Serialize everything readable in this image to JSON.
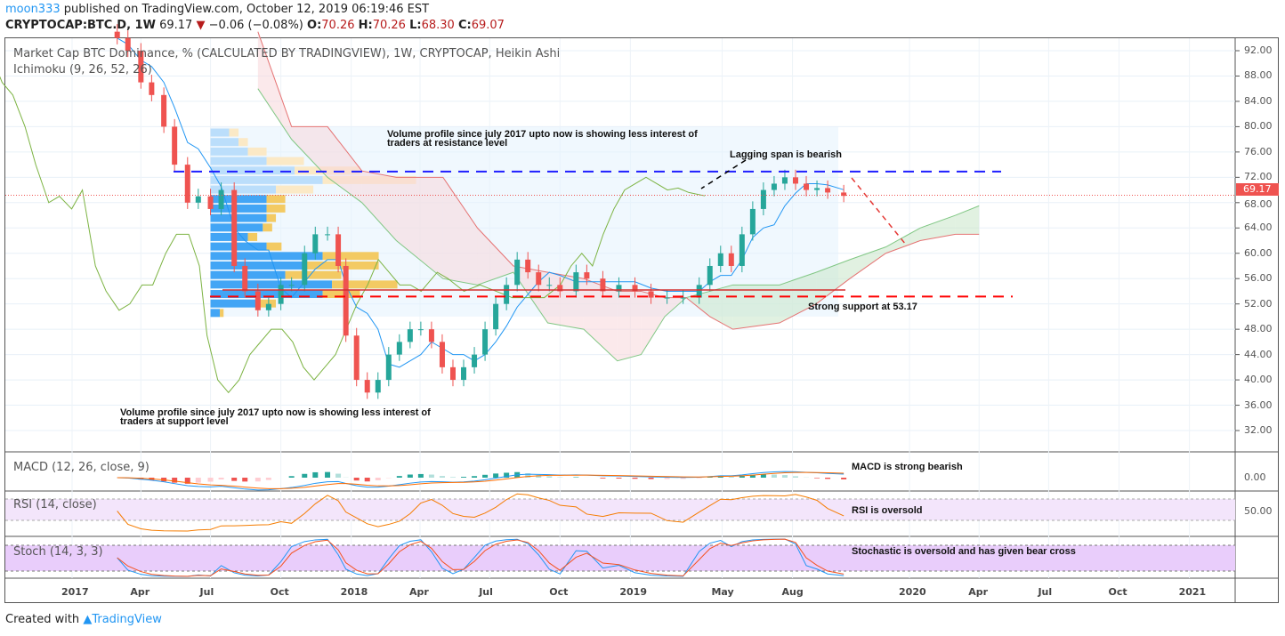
{
  "header": {
    "user": "moon333",
    "published": "published on TradingView.com, October 12, 2019 06:19:46 EST",
    "symbol": "CRYPTOCAP:BTC.D, 1W",
    "last": "69.17",
    "change": "−0.06 (−0.08%)",
    "o_label": "O:",
    "o": "70.26",
    "h_label": "H:",
    "h": "70.26",
    "l_label": "L:",
    "l": "68.30",
    "c_label": "C:",
    "c": "69.07"
  },
  "panes": {
    "main_title": "Market Cap BTC Dominance, % (CALCULATED BY TRADINGVIEW), 1W, CRYPTOCAP, Heikin Ashi",
    "ichimoku": "Ichimoku (9, 26, 52, 26)",
    "macd": "MACD (12, 26, close, 9)",
    "rsi": "RSI (14, close)",
    "stoch": "Stoch (14, 3, 3)"
  },
  "annotations": {
    "vp_resistance_1": "Volume profile since july 2017 upto now is showing less interest of",
    "vp_resistance_2": "traders at resistance level",
    "lagging": "Lagging span is bearish",
    "support": "Strong support at 53.17",
    "vp_support_1": "Volume profile since july 2017 upto now is showing less interest of",
    "vp_support_2": "traders at support level",
    "macd": "MACD is strong bearish",
    "rsi": "RSI is oversold",
    "stoch": "Stochastic is oversold and has given bear cross"
  },
  "price_axis": {
    "ticks": [
      "92.00",
      "88.00",
      "84.00",
      "80.00",
      "76.00",
      "72.00",
      "68.00",
      "64.00",
      "60.00",
      "56.00",
      "52.00",
      "48.00",
      "44.00",
      "40.00",
      "36.00",
      "32.00"
    ],
    "current": "69.17",
    "macd_tick": "0.00",
    "rsi_tick": "50.00"
  },
  "time_axis": {
    "ticks": [
      [
        "2017",
        "2017-01-01"
      ],
      [
        "Apr",
        "2017-04-01"
      ],
      [
        "Jul",
        "2017-07-01"
      ],
      [
        "Oct",
        "2017-10-01"
      ],
      [
        "2018",
        "2018-01-01"
      ],
      [
        "Apr",
        "2018-04-01"
      ],
      [
        "Jul",
        "2018-07-01"
      ],
      [
        "Oct",
        "2018-10-01"
      ],
      [
        "2019",
        "2019-01-01"
      ],
      [
        "May",
        "2019-05-01"
      ],
      [
        "Aug",
        "2019-08-01"
      ],
      [
        "2020",
        "2020-01-01"
      ],
      [
        "Apr",
        "2020-04-01"
      ],
      [
        "Jul",
        "2020-07-01"
      ],
      [
        "Oct",
        "2020-10-01"
      ],
      [
        "2021",
        "2021-01-01"
      ]
    ]
  },
  "footer": {
    "created": "Created with",
    "brand": "TradingView"
  },
  "colors": {
    "up": "#26a69a",
    "down": "#ef5350",
    "resistance": "#1e1eff",
    "support": "#ff0000",
    "lagging": "#7cb342",
    "base": "#2196f3",
    "rsi": "#f57c00",
    "stoch_k": "#2196f3",
    "stoch_d": "#f4511e"
  },
  "chart_data": {
    "type": "candlestick",
    "ylim": [
      28,
      95
    ],
    "levels": {
      "resistance": 72.9,
      "support": 53.17,
      "support_zone": 54.2
    },
    "candles": [
      [
        "2017-03-01",
        94
      ],
      [
        "2017-03-15",
        92
      ],
      [
        "2017-04-01",
        87
      ],
      [
        "2017-04-15",
        85
      ],
      [
        "2017-05-01",
        80
      ],
      [
        "2017-05-15",
        74
      ],
      [
        "2017-06-01",
        68
      ],
      [
        "2017-06-15",
        69
      ],
      [
        "2017-07-01",
        67
      ],
      [
        "2017-07-15",
        70
      ],
      [
        "2017-08-01",
        58
      ],
      [
        "2017-08-15",
        54
      ],
      [
        "2017-09-01",
        51
      ],
      [
        "2017-09-15",
        52
      ],
      [
        "2017-10-01",
        55
      ],
      [
        "2017-10-15",
        55
      ],
      [
        "2017-11-01",
        60
      ],
      [
        "2017-11-15",
        63
      ],
      [
        "2017-12-01",
        63
      ],
      [
        "2017-12-15",
        58
      ],
      [
        "2017-12-25",
        47
      ],
      [
        "2018-01-08",
        40
      ],
      [
        "2018-01-22",
        38
      ],
      [
        "2018-02-05",
        40
      ],
      [
        "2018-02-19",
        44
      ],
      [
        "2018-03-05",
        46
      ],
      [
        "2018-03-19",
        48
      ],
      [
        "2018-04-02",
        48
      ],
      [
        "2018-04-16",
        46
      ],
      [
        "2018-04-30",
        42
      ],
      [
        "2018-05-14",
        40
      ],
      [
        "2018-05-28",
        42
      ],
      [
        "2018-06-11",
        44
      ],
      [
        "2018-06-25",
        48
      ],
      [
        "2018-07-09",
        52
      ],
      [
        "2018-07-23",
        55
      ],
      [
        "2018-08-06",
        59
      ],
      [
        "2018-08-20",
        57
      ],
      [
        "2018-09-03",
        55
      ],
      [
        "2018-09-17",
        55
      ],
      [
        "2018-10-01",
        54
      ],
      [
        "2018-10-22",
        57
      ],
      [
        "2018-11-05",
        56
      ],
      [
        "2018-11-26",
        54
      ],
      [
        "2018-12-17",
        55
      ],
      [
        "2019-01-07",
        54
      ],
      [
        "2019-01-28",
        53
      ],
      [
        "2019-02-18",
        53
      ],
      [
        "2019-03-11",
        53
      ],
      [
        "2019-04-01",
        55
      ],
      [
        "2019-04-15",
        58
      ],
      [
        "2019-04-29",
        60
      ],
      [
        "2019-05-13",
        58
      ],
      [
        "2019-05-27",
        63
      ],
      [
        "2019-06-10",
        67
      ],
      [
        "2019-06-24",
        70
      ],
      [
        "2019-07-08",
        71
      ],
      [
        "2019-07-22",
        72
      ],
      [
        "2019-08-05",
        71
      ],
      [
        "2019-08-19",
        70
      ],
      [
        "2019-09-02",
        70.3
      ],
      [
        "2019-09-16",
        69.6
      ],
      [
        "2019-10-07",
        69.07
      ]
    ],
    "ichimoku_cloud": [
      [
        "2017-09-01",
        86,
        95
      ],
      [
        "2017-10-15",
        78,
        80
      ],
      [
        "2017-12-01",
        72,
        80
      ],
      [
        "2018-01-15",
        68,
        73
      ],
      [
        "2018-03-01",
        62,
        72
      ],
      [
        "2018-05-01",
        56,
        72
      ],
      [
        "2018-06-15",
        55,
        64
      ],
      [
        "2018-08-01",
        57,
        58
      ],
      [
        "2018-09-15",
        49,
        57
      ],
      [
        "2018-11-01",
        48,
        56
      ],
      [
        "2018-12-15",
        43,
        54
      ],
      [
        "2019-01-15",
        44,
        54
      ],
      [
        "2019-02-15",
        50,
        53
      ],
      [
        "2019-03-15",
        53,
        53
      ],
      [
        "2019-04-15",
        54,
        50
      ],
      [
        "2019-05-15",
        55,
        48
      ],
      [
        "2019-07-15",
        55,
        49
      ],
      [
        "2019-09-01",
        57,
        52
      ],
      [
        "2019-10-15",
        59,
        56
      ],
      [
        "2019-12-01",
        61,
        60
      ],
      [
        "2020-01-15",
        64,
        62
      ],
      [
        "2020-03-01",
        66,
        63
      ],
      [
        "2020-04-01",
        67.5,
        63
      ]
    ],
    "volume_profile": {
      "range": [
        "2017-07-01",
        "2019-09-30"
      ],
      "rows": [
        [
          79,
          0.1,
          0.05
        ],
        [
          77.5,
          0.15,
          0.05
        ],
        [
          76,
          0.2,
          0.1
        ],
        [
          74.5,
          0.3,
          0.2
        ],
        [
          73,
          0.45,
          0.35
        ],
        [
          71.5,
          0.6,
          0.5
        ],
        [
          70,
          0.35,
          0.2
        ],
        [
          68.5,
          0.3,
          0.1
        ],
        [
          67,
          0.3,
          0.1
        ],
        [
          65.5,
          0.3,
          0.05
        ],
        [
          64,
          0.28,
          0.05
        ],
        [
          62.5,
          0.2,
          0.05
        ],
        [
          61,
          0.3,
          0.08
        ],
        [
          59.5,
          0.6,
          0.3
        ],
        [
          58,
          0.5,
          0.4
        ],
        [
          56.5,
          0.4,
          0.3
        ],
        [
          55,
          0.65,
          0.35
        ],
        [
          53.5,
          0.6,
          0.2
        ],
        [
          52,
          0.25,
          0.1
        ],
        [
          50.5,
          0.05,
          0.02
        ]
      ]
    }
  }
}
